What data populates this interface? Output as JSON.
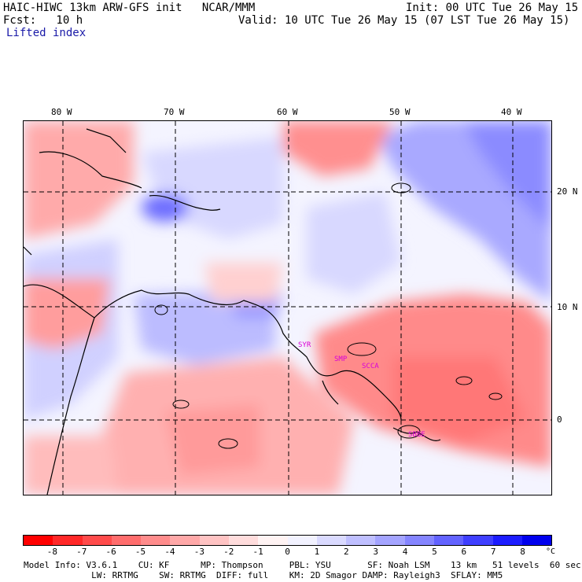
{
  "header": {
    "title": "HAIC-HIWC 13km ARW-GFS init   NCAR/MMM",
    "init": "Init: 00 UTC Tue 26 May 15",
    "fcst": "Fcst:   10 h",
    "valid": "Valid: 10 UTC Tue 26 May 15 (07 LST Tue 26 May 15)",
    "field": "Lifted index"
  },
  "map": {
    "lon_labels": [
      "80 W",
      "70 W",
      "60 W",
      "50 W",
      "40 W"
    ],
    "lat_labels": [
      "20 N",
      "10 N",
      "0"
    ],
    "stations": [
      "SYR",
      "SMP",
      "SCCA",
      "SBBE"
    ]
  },
  "colorbar": {
    "ticks": [
      "-8",
      "-7",
      "-6",
      "-5",
      "-4",
      "-3",
      "-2",
      "-1",
      "0",
      "1",
      "2",
      "3",
      "4",
      "5",
      "6",
      "7",
      "8"
    ],
    "unit": "°C",
    "colors": [
      "#ff0000",
      "#ff2828",
      "#ff4b4b",
      "#ff6d6d",
      "#ff8c8c",
      "#ffa8a8",
      "#ffc3c3",
      "#ffdcdc",
      "#fff3f3",
      "#f2f2ff",
      "#dadaff",
      "#bfbfff",
      "#a4a4ff",
      "#8585ff",
      "#6363ff",
      "#3f3fff",
      "#1c1cff",
      "#0000ee"
    ]
  },
  "footer": {
    "line1": "Model Info: V3.6.1    CU: KF      MP: Thompson     PBL: YSU       SF: Noah LSM    13 km   51 levels  60 sec",
    "line2": "             LW: RRTMG    SW: RRTMG  DIFF: full    KM: 2D Smagor DAMP: Rayleigh3  SFLAY: MM5"
  }
}
